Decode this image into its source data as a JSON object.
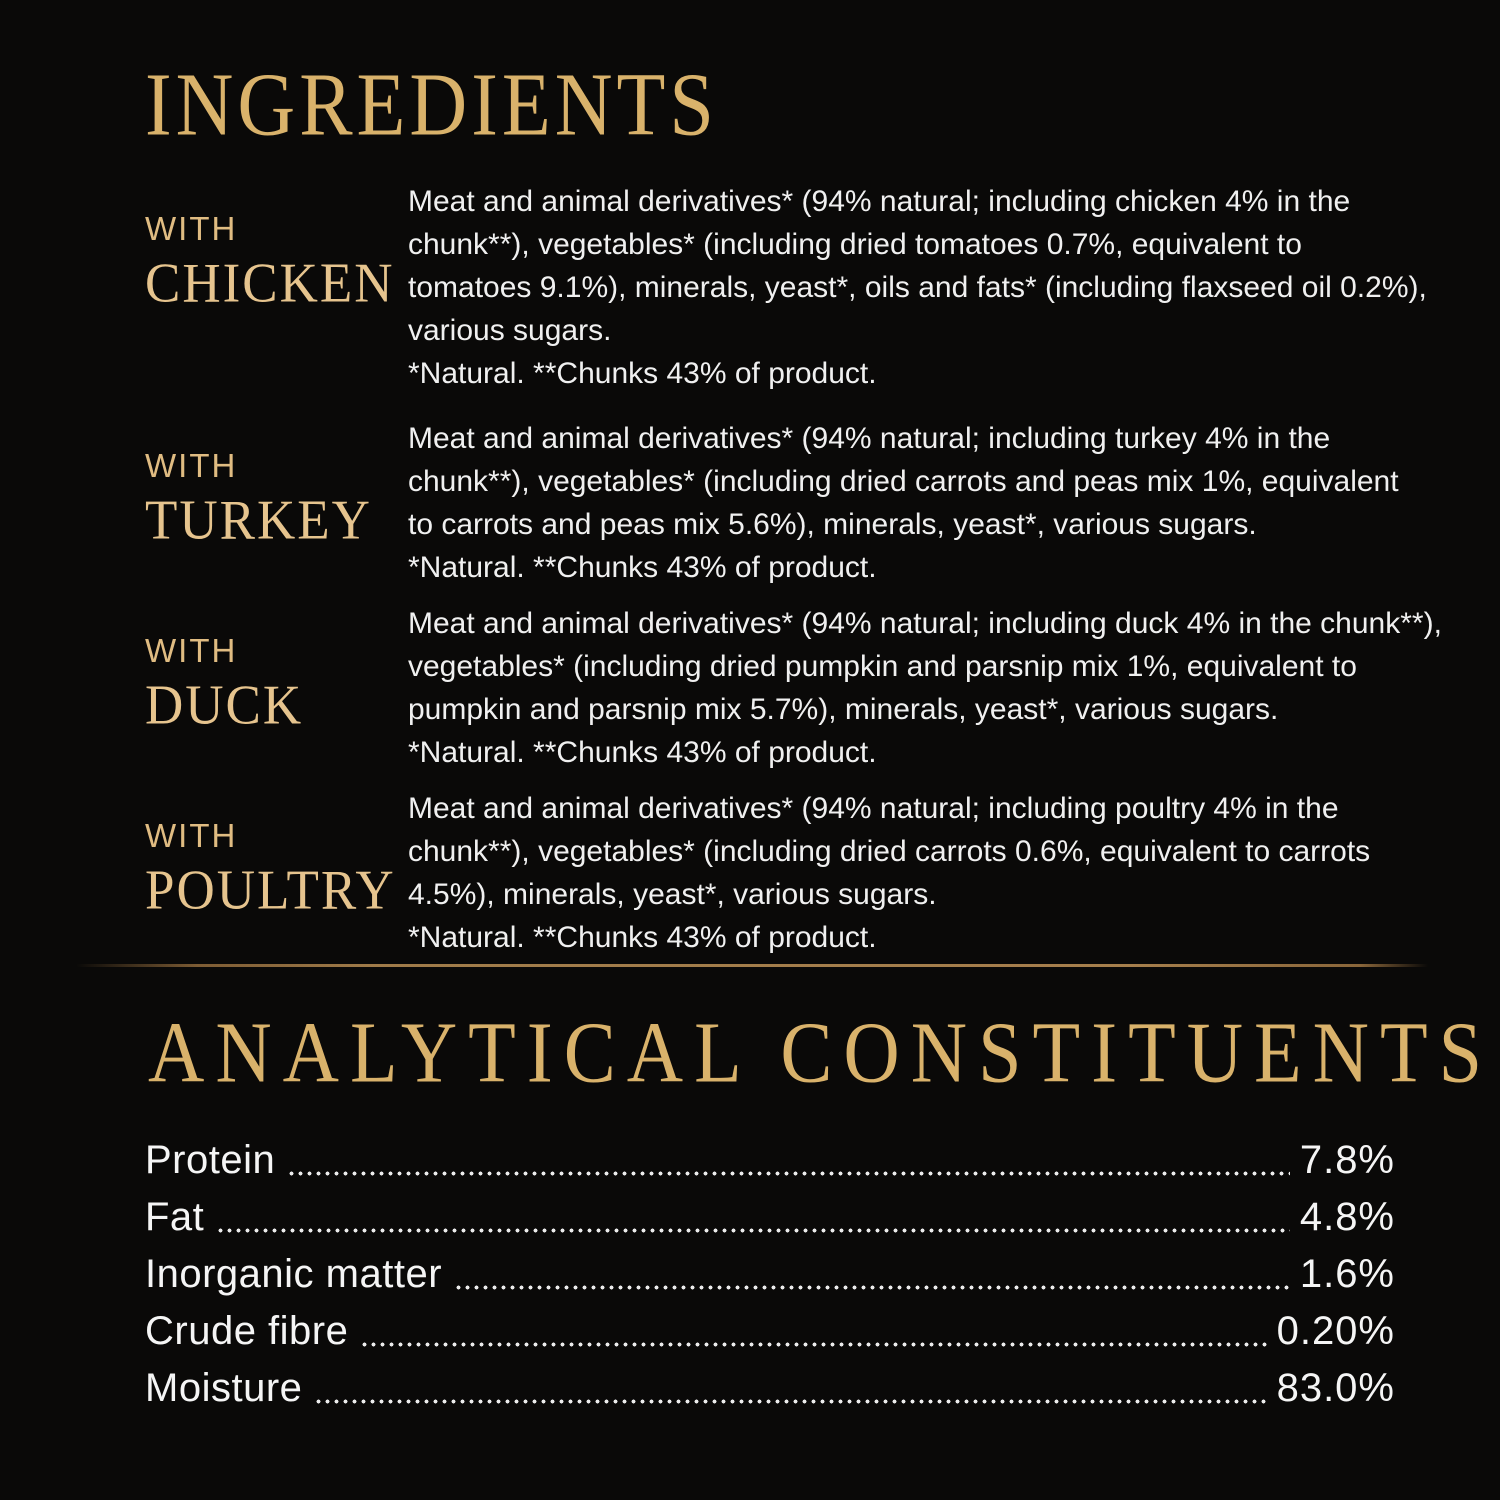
{
  "page": {
    "background_color": "#0a0908",
    "accent_gold": "#d9b26b",
    "body_text_color": "#f0f0f0"
  },
  "ingredients": {
    "title": "INGREDIENTS",
    "sections": [
      {
        "prefix": "WITH",
        "name": "CHICKEN",
        "text": "Meat and animal derivatives* (94% natural; including chicken 4% in the\nchunk**), vegetables* (including dried tomatoes 0.7%, equivalent to\ntomatoes 9.1%), minerals, yeast*, oils and fats* (including flaxseed oil 0.2%),\nvarious sugars.\n*Natural. **Chunks 43% of product."
      },
      {
        "prefix": "WITH",
        "name": "TURKEY",
        "text": "Meat and animal derivatives* (94% natural; including turkey 4% in the\nchunk**), vegetables* (including dried carrots and peas mix 1%, equivalent\nto carrots and peas mix 5.6%), minerals, yeast*, various sugars.\n*Natural. **Chunks 43% of product."
      },
      {
        "prefix": "WITH",
        "name": "DUCK",
        "text": "Meat and animal derivatives* (94% natural; including duck 4% in the chunk**),\nvegetables* (including dried pumpkin and parsnip mix 1%, equivalent to\npumpkin and parsnip mix 5.7%), minerals, yeast*, various sugars.\n*Natural. **Chunks 43% of product."
      },
      {
        "prefix": "WITH",
        "name": "POULTRY",
        "text": "Meat and animal derivatives* (94% natural; including poultry 4% in the\nchunk**), vegetables* (including dried carrots 0.6%, equivalent to carrots\n4.5%), minerals, yeast*, various sugars.\n*Natural. **Chunks 43% of product."
      }
    ]
  },
  "analytical": {
    "title": "ANALYTICAL CONSTITUENTS",
    "rows": [
      {
        "label": "Protein",
        "value": "7.8%"
      },
      {
        "label": "Fat",
        "value": "4.8%"
      },
      {
        "label": "Inorganic matter",
        "value": "1.6%"
      },
      {
        "label": "Crude fibre",
        "value": "0.20%"
      },
      {
        "label": "Moisture",
        "value": "83.0%"
      }
    ]
  }
}
